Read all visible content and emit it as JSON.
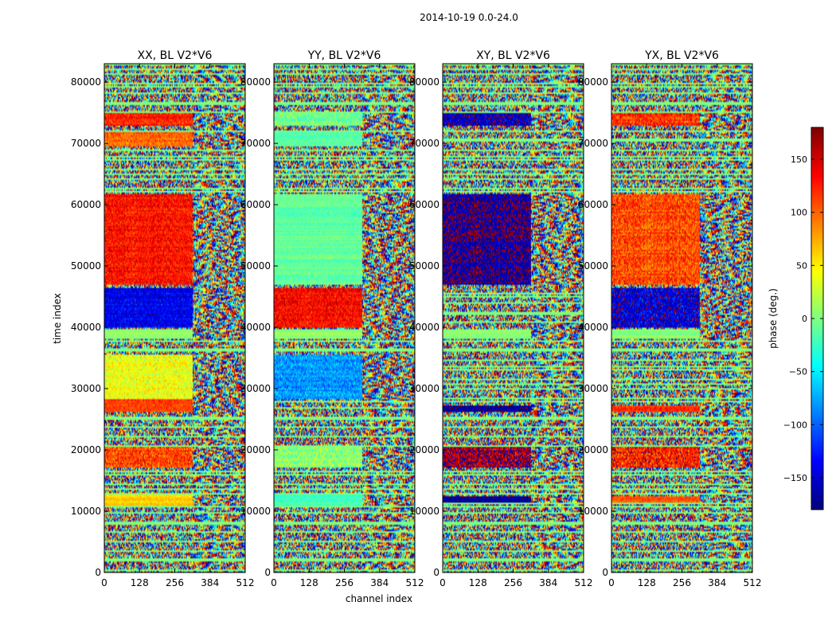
{
  "chart_data": {
    "type": "heatmap",
    "suptitle": "2014-10-19 0.0-24.0",
    "xlabel": "channel index",
    "ylabel": "time index",
    "xlim": [
      0,
      512
    ],
    "ylim": [
      0,
      83000
    ],
    "xticks": [
      0,
      128,
      256,
      384,
      512
    ],
    "yticks": [
      0,
      10000,
      20000,
      30000,
      40000,
      50000,
      60000,
      70000,
      80000
    ],
    "panels": [
      {
        "title": "XX, BL V2*V6",
        "coherent_channel_max": 320,
        "bands": [
          {
            "t0": 11000,
            "t1": 12800,
            "phase": 60,
            "noise": 10
          },
          {
            "t0": 17000,
            "t1": 20500,
            "phase": 110,
            "noise": 30
          },
          {
            "t0": 26300,
            "t1": 28200,
            "phase": 115,
            "noise": 15
          },
          {
            "t0": 28200,
            "t1": 35600,
            "phase": 40,
            "noise": 22
          },
          {
            "t0": 38000,
            "t1": 39800,
            "phase": 5,
            "noise": 4
          },
          {
            "t0": 40000,
            "t1": 46300,
            "phase": -140,
            "noise": 22
          },
          {
            "t0": 47000,
            "t1": 61700,
            "phase": 130,
            "noise": 22
          },
          {
            "t0": 69500,
            "t1": 71800,
            "phase": 100,
            "noise": 20
          },
          {
            "t0": 72800,
            "t1": 75000,
            "phase": 125,
            "noise": 22
          }
        ]
      },
      {
        "title": "YY, BL V2*V6",
        "coherent_channel_max": 320,
        "bands": [
          {
            "t0": 11000,
            "t1": 12800,
            "phase": -20,
            "noise": 6
          },
          {
            "t0": 17000,
            "t1": 20500,
            "phase": 5,
            "noise": 25
          },
          {
            "t0": 28200,
            "t1": 35600,
            "phase": -80,
            "noise": 25
          },
          {
            "t0": 38000,
            "t1": 39800,
            "phase": 5,
            "noise": 4
          },
          {
            "t0": 40000,
            "t1": 46300,
            "phase": 135,
            "noise": 22
          },
          {
            "t0": 47000,
            "t1": 61700,
            "phase": -10,
            "noise": 10
          },
          {
            "t0": 69500,
            "t1": 71800,
            "phase": -15,
            "noise": 10
          },
          {
            "t0": 72800,
            "t1": 75000,
            "phase": -5,
            "noise": 22
          }
        ]
      },
      {
        "title": "XY, BL V2*V6",
        "coherent_channel_max": 320,
        "bands": [
          {
            "t0": 11500,
            "t1": 12400,
            "phase": -170,
            "noise": 8
          },
          {
            "t0": 17000,
            "t1": 20500,
            "phase": 165,
            "noise": 40
          },
          {
            "t0": 26300,
            "t1": 27200,
            "phase": -165,
            "noise": 10
          },
          {
            "t0": 38000,
            "t1": 39800,
            "phase": 5,
            "noise": 4
          },
          {
            "t0": 47000,
            "t1": 61700,
            "phase": -170,
            "noise": 25
          },
          {
            "t0": 72800,
            "t1": 75000,
            "phase": -160,
            "noise": 30
          }
        ]
      },
      {
        "title": "YX, BL V2*V6",
        "coherent_channel_max": 320,
        "bands": [
          {
            "t0": 11500,
            "t1": 12400,
            "phase": 110,
            "noise": 15
          },
          {
            "t0": 17000,
            "t1": 20500,
            "phase": 130,
            "noise": 40
          },
          {
            "t0": 26300,
            "t1": 27200,
            "phase": 120,
            "noise": 15
          },
          {
            "t0": 38000,
            "t1": 39800,
            "phase": 5,
            "noise": 4
          },
          {
            "t0": 40000,
            "t1": 46300,
            "phase": -150,
            "noise": 35
          },
          {
            "t0": 47000,
            "t1": 61700,
            "phase": 110,
            "noise": 28
          },
          {
            "t0": 72800,
            "t1": 75000,
            "phase": 120,
            "noise": 30
          }
        ]
      }
    ],
    "colorbar": {
      "label": "phase (deg.)",
      "vmin": -180,
      "vmax": 180,
      "ticks": [
        150,
        100,
        50,
        0,
        -50,
        -100,
        -150
      ],
      "tick_labels": [
        "150",
        "100",
        "50",
        "0",
        "−50",
        "−100",
        "−150"
      ],
      "colormap": "jet"
    }
  }
}
